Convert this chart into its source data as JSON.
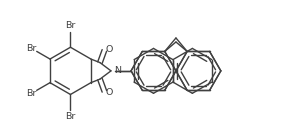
{
  "bg": "#ffffff",
  "lc": "#404040",
  "lw": 1.0,
  "fs": 6.8,
  "xlim": [
    0.0,
    10.5
  ],
  "ylim": [
    -2.8,
    3.0
  ]
}
